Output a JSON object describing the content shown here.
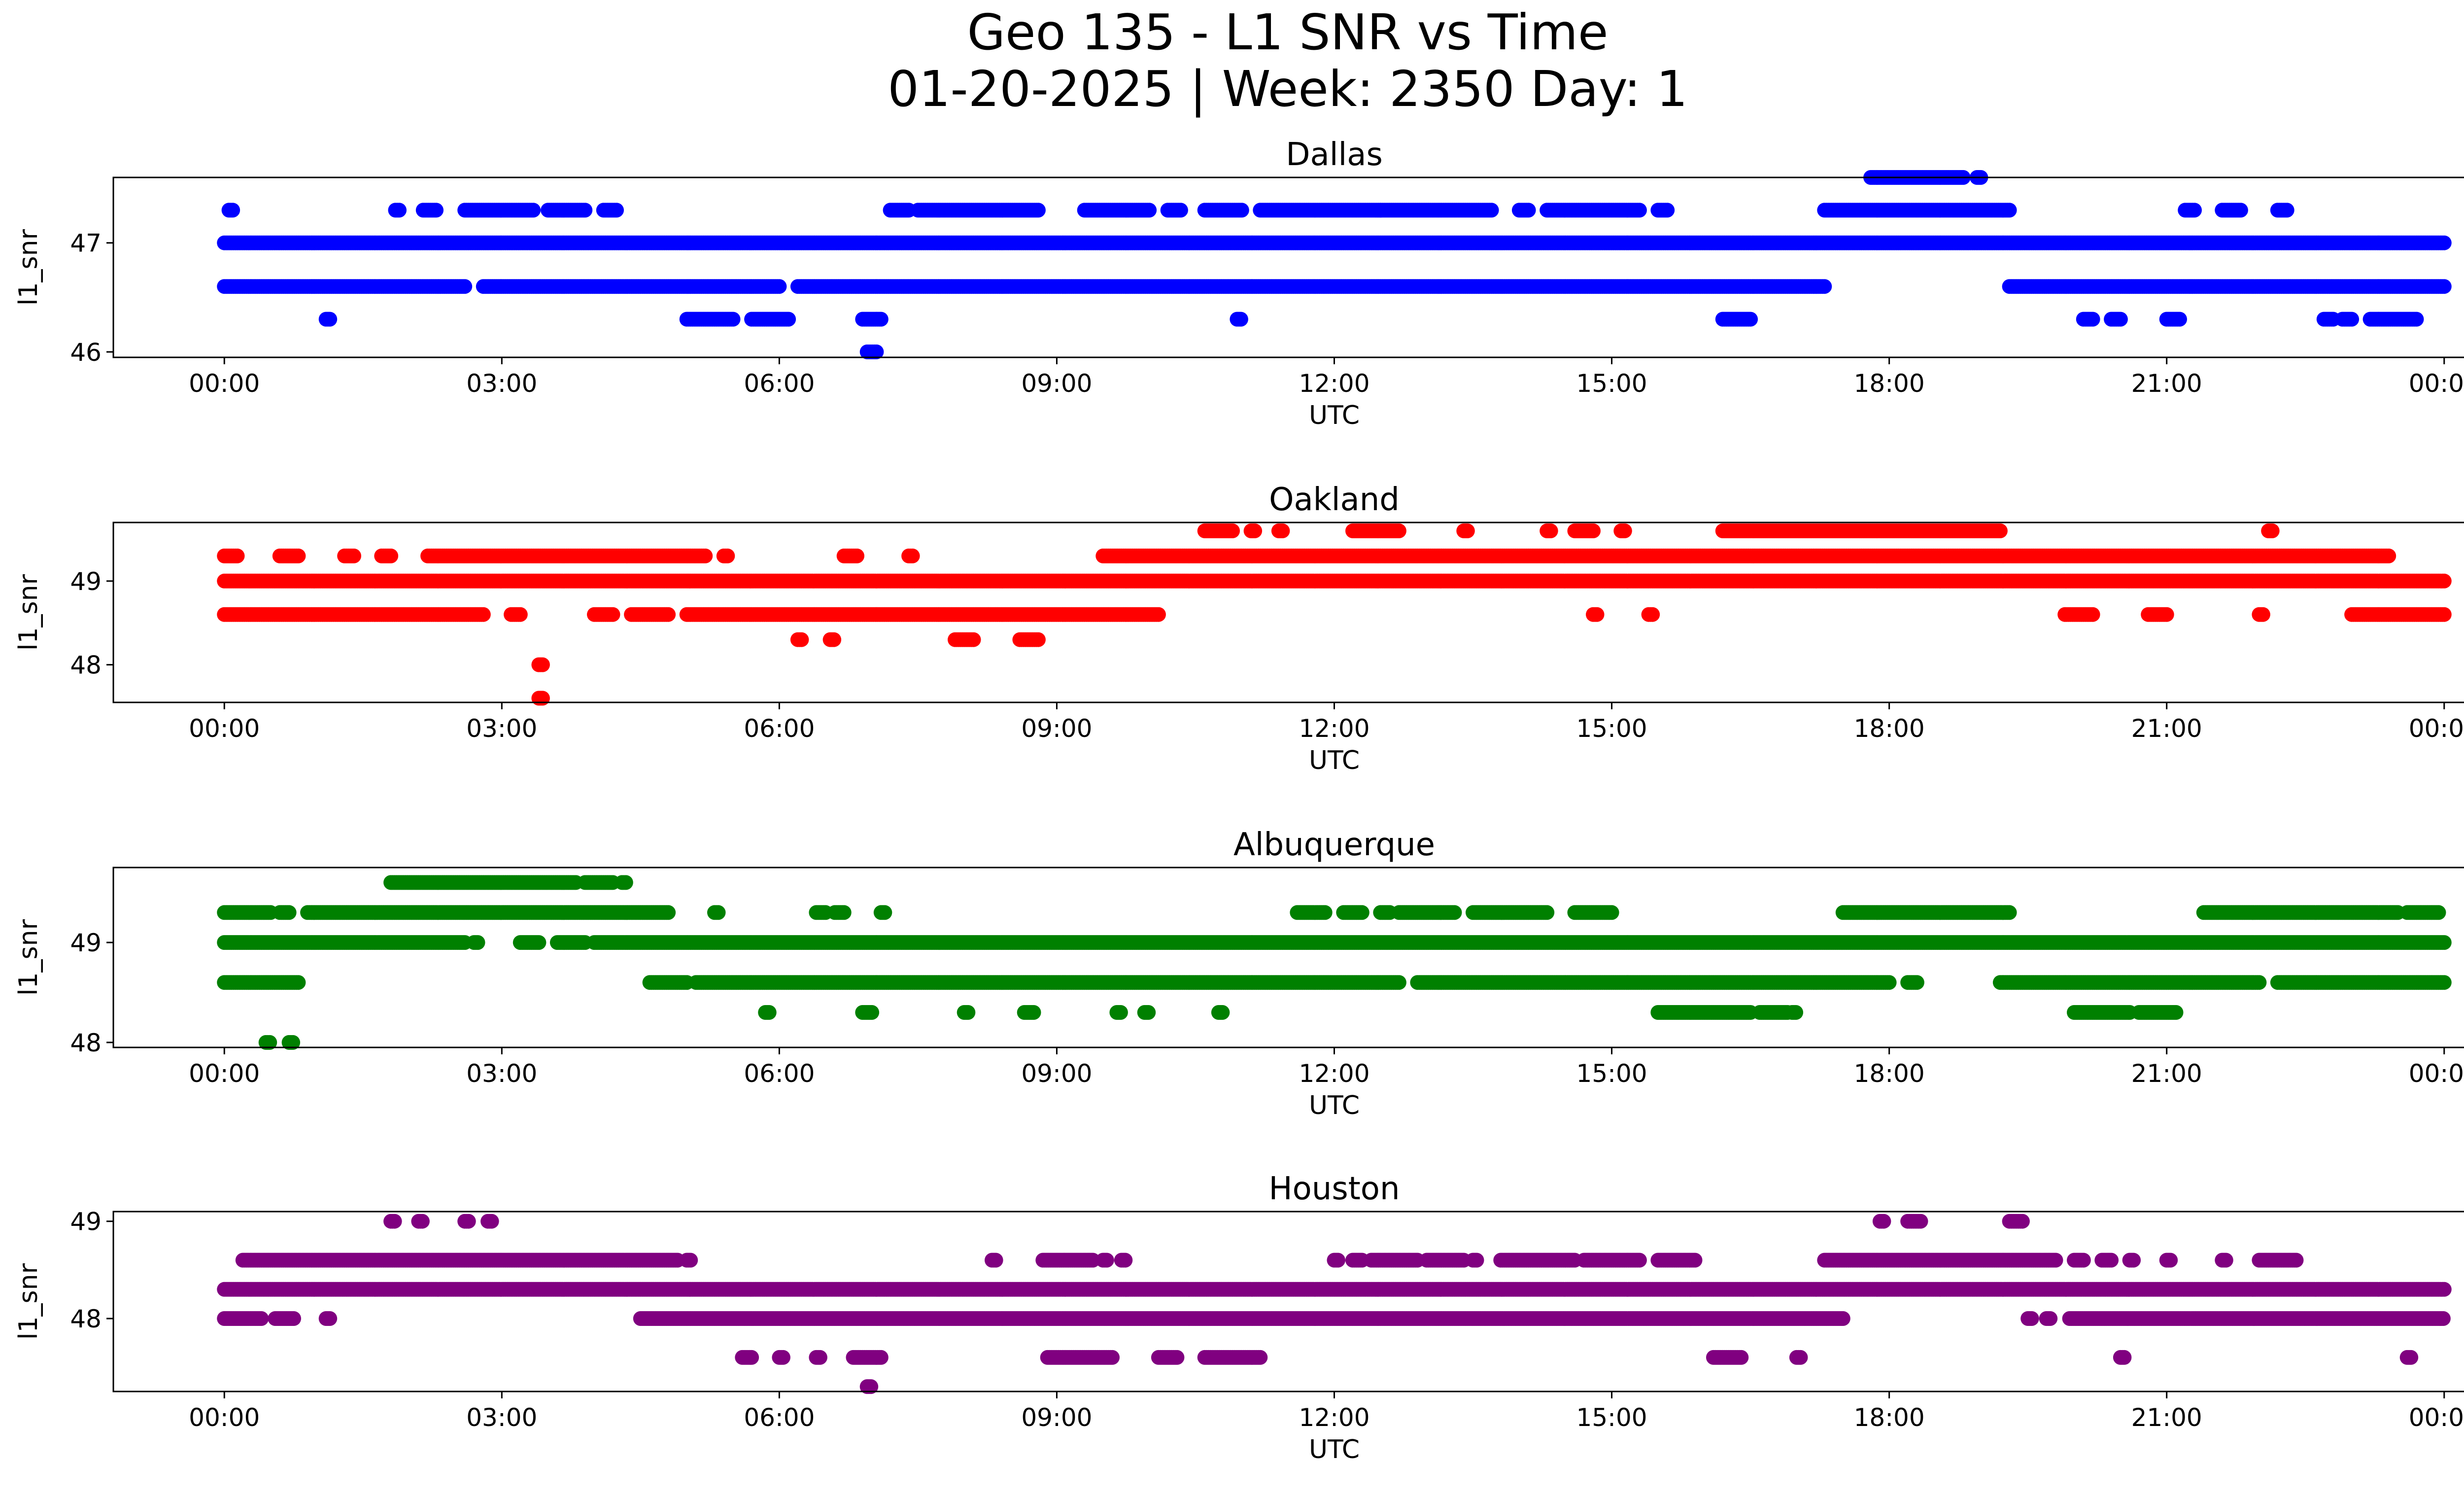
{
  "figure": {
    "title_line1": "Geo 135 - L1 SNR vs Time",
    "title_line2": "01-20-2025 | Week: 2350 Day: 1"
  },
  "chart_data": [
    {
      "type": "scatter",
      "title": "Dallas",
      "xlabel": "UTC",
      "ylabel": "l1_snr",
      "color": "#0000ff",
      "xlim_hours": [
        -1.2,
        25.2
      ],
      "ylim": [
        45.95,
        47.6
      ],
      "yticks": [
        46,
        47
      ],
      "xticks": [
        "00:00",
        "03:00",
        "06:00",
        "09:00",
        "12:00",
        "15:00",
        "18:00",
        "21:00",
        "00:00"
      ],
      "bands": [
        {
          "y": 47.0,
          "segments": [
            [
              0,
              24
            ]
          ]
        },
        {
          "y": 46.6,
          "segments": [
            [
              0,
              2.6
            ],
            [
              2.8,
              6.0
            ],
            [
              6.2,
              17.3
            ],
            [
              19.3,
              24
            ]
          ]
        },
        {
          "y": 47.3,
          "segments": [
            [
              0.05,
              0.1
            ],
            [
              1.85,
              1.9
            ],
            [
              2.15,
              2.3
            ],
            [
              2.6,
              3.35
            ],
            [
              3.5,
              3.9
            ],
            [
              4.1,
              4.25
            ],
            [
              7.2,
              7.4
            ],
            [
              7.5,
              8.8
            ],
            [
              9.3,
              10.0
            ],
            [
              10.2,
              10.35
            ],
            [
              10.6,
              11.0
            ],
            [
              11.2,
              12.5
            ],
            [
              12.5,
              13.7
            ],
            [
              14.0,
              14.1
            ],
            [
              14.3,
              15.3
            ],
            [
              15.5,
              15.6
            ],
            [
              17.3,
              19.3
            ],
            [
              21.2,
              21.3
            ],
            [
              21.6,
              21.8
            ],
            [
              22.2,
              22.3
            ]
          ]
        },
        {
          "y": 47.6,
          "segments": [
            [
              17.8,
              18.8
            ],
            [
              18.95,
              19.0
            ]
          ]
        },
        {
          "y": 46.3,
          "segments": [
            [
              1.1,
              1.15
            ],
            [
              5.0,
              5.5
            ],
            [
              5.7,
              6.1
            ],
            [
              6.9,
              7.1
            ],
            [
              10.95,
              11.0
            ],
            [
              16.2,
              16.5
            ],
            [
              20.1,
              20.2
            ],
            [
              20.4,
              20.5
            ],
            [
              21.0,
              21.15
            ],
            [
              22.7,
              22.8
            ],
            [
              22.9,
              23.0
            ],
            [
              23.2,
              23.7
            ]
          ]
        },
        {
          "y": 46.0,
          "segments": [
            [
              6.95,
              7.05
            ]
          ]
        }
      ]
    },
    {
      "type": "scatter",
      "title": "Oakland",
      "xlabel": "UTC",
      "ylabel": "l1_snr",
      "color": "#ff0000",
      "xlim_hours": [
        -1.2,
        25.2
      ],
      "ylim": [
        47.55,
        49.7
      ],
      "yticks": [
        48,
        49
      ],
      "xticks": [
        "00:00",
        "03:00",
        "06:00",
        "09:00",
        "12:00",
        "15:00",
        "18:00",
        "21:00",
        "00:00"
      ],
      "bands": [
        {
          "y": 49.0,
          "segments": [
            [
              0,
              24
            ]
          ]
        },
        {
          "y": 48.6,
          "segments": [
            [
              0,
              2.8
            ],
            [
              3.1,
              3.2
            ],
            [
              4.0,
              4.2
            ],
            [
              4.4,
              4.8
            ],
            [
              5.0,
              10.1
            ],
            [
              14.8,
              14.85
            ],
            [
              15.4,
              15.45
            ],
            [
              19.9,
              20.2
            ],
            [
              20.8,
              21.0
            ],
            [
              22.0,
              22.05
            ],
            [
              23.0,
              24
            ]
          ]
        },
        {
          "y": 49.3,
          "segments": [
            [
              0,
              0.15
            ],
            [
              0.6,
              0.8
            ],
            [
              1.3,
              1.4
            ],
            [
              1.7,
              1.8
            ],
            [
              2.2,
              5.2
            ],
            [
              5.4,
              5.45
            ],
            [
              6.7,
              6.85
            ],
            [
              7.4,
              7.45
            ],
            [
              9.5,
              23.4
            ]
          ]
        },
        {
          "y": 49.6,
          "segments": [
            [
              10.6,
              10.9
            ],
            [
              11.1,
              11.15
            ],
            [
              11.4,
              11.45
            ],
            [
              12.2,
              12.7
            ],
            [
              13.4,
              13.45
            ],
            [
              14.3,
              14.35
            ],
            [
              14.6,
              14.8
            ],
            [
              15.1,
              15.15
            ],
            [
              16.2,
              19.2
            ],
            [
              22.1,
              22.15
            ]
          ]
        },
        {
          "y": 48.3,
          "segments": [
            [
              6.2,
              6.25
            ],
            [
              6.55,
              6.6
            ],
            [
              7.9,
              8.1
            ],
            [
              8.6,
              8.8
            ]
          ]
        },
        {
          "y": 48.0,
          "segments": [
            [
              3.4,
              3.45
            ]
          ]
        },
        {
          "y": 47.6,
          "segments": [
            [
              3.4,
              3.45
            ]
          ]
        }
      ]
    },
    {
      "type": "scatter",
      "title": "Albuquerque",
      "xlabel": "UTC",
      "ylabel": "l1_snr",
      "color": "#008000",
      "xlim_hours": [
        -1.2,
        25.2
      ],
      "ylim": [
        47.95,
        49.75
      ],
      "yticks": [
        48,
        49
      ],
      "xticks": [
        "00:00",
        "03:00",
        "06:00",
        "09:00",
        "12:00",
        "15:00",
        "18:00",
        "21:00",
        "00:00"
      ],
      "bands": [
        {
          "y": 49.0,
          "segments": [
            [
              0,
              2.6
            ],
            [
              2.7,
              2.75
            ],
            [
              3.2,
              3.4
            ],
            [
              3.6,
              3.9
            ],
            [
              4.0,
              24
            ]
          ]
        },
        {
          "y": 48.6,
          "segments": [
            [
              0,
              0.8
            ],
            [
              4.6,
              5.0
            ],
            [
              5.1,
              12.7
            ],
            [
              12.9,
              18.0
            ],
            [
              18.2,
              18.3
            ],
            [
              19.2,
              22.0
            ],
            [
              22.2,
              24
            ]
          ]
        },
        {
          "y": 49.3,
          "segments": [
            [
              0,
              0.5
            ],
            [
              0.6,
              0.7
            ],
            [
              0.9,
              4.8
            ],
            [
              5.3,
              5.35
            ],
            [
              6.4,
              6.5
            ],
            [
              6.6,
              6.7
            ],
            [
              7.1,
              7.15
            ],
            [
              11.6,
              11.9
            ],
            [
              12.1,
              12.3
            ],
            [
              12.5,
              12.6
            ],
            [
              12.7,
              13.3
            ],
            [
              13.5,
              14.3
            ],
            [
              14.6,
              15.0
            ],
            [
              17.5,
              19.3
            ],
            [
              21.4,
              23.5
            ],
            [
              23.6,
              23.95
            ]
          ]
        },
        {
          "y": 49.6,
          "segments": [
            [
              1.8,
              3.8
            ],
            [
              3.9,
              4.2
            ],
            [
              4.3,
              4.35
            ]
          ]
        },
        {
          "y": 48.3,
          "segments": [
            [
              5.85,
              5.9
            ],
            [
              6.9,
              7.0
            ],
            [
              8.0,
              8.05
            ],
            [
              8.65,
              8.75
            ],
            [
              9.65,
              9.7
            ],
            [
              9.95,
              10.0
            ],
            [
              10.75,
              10.8
            ],
            [
              15.5,
              16.5
            ],
            [
              16.6,
              16.9
            ],
            [
              16.95,
              17.0
            ],
            [
              20.0,
              20.6
            ],
            [
              20.7,
              21.1
            ]
          ]
        },
        {
          "y": 48.0,
          "segments": [
            [
              0.45,
              0.5
            ],
            [
              0.7,
              0.75
            ]
          ]
        }
      ]
    },
    {
      "type": "scatter",
      "title": "Houston",
      "xlabel": "UTC",
      "ylabel": "l1_snr",
      "color": "#800080",
      "xlim_hours": [
        -1.2,
        25.2
      ],
      "ylim": [
        47.25,
        49.1
      ],
      "yticks": [
        48,
        49
      ],
      "xticks": [
        "00:00",
        "03:00",
        "06:00",
        "09:00",
        "12:00",
        "15:00",
        "18:00",
        "21:00",
        "00:00"
      ],
      "bands": [
        {
          "y": 48.3,
          "segments": [
            [
              0,
              24
            ]
          ]
        },
        {
          "y": 48.0,
          "segments": [
            [
              0,
              0.4
            ],
            [
              0.55,
              0.75
            ],
            [
              1.1,
              1.15
            ],
            [
              4.5,
              17.5
            ],
            [
              19.5,
              19.55
            ],
            [
              19.7,
              19.75
            ],
            [
              19.95,
              24
            ]
          ]
        },
        {
          "y": 48.6,
          "segments": [
            [
              0.2,
              4.9
            ],
            [
              5.0,
              5.05
            ],
            [
              8.3,
              8.35
            ],
            [
              8.85,
              9.4
            ],
            [
              9.5,
              9.55
            ],
            [
              9.7,
              9.75
            ],
            [
              12.0,
              12.05
            ],
            [
              12.2,
              12.3
            ],
            [
              12.4,
              12.9
            ],
            [
              13.0,
              13.4
            ],
            [
              13.5,
              13.55
            ],
            [
              13.8,
              14.6
            ],
            [
              14.7,
              15.3
            ],
            [
              15.5,
              15.9
            ],
            [
              17.3,
              19.8
            ],
            [
              20.0,
              20.1
            ],
            [
              20.3,
              20.4
            ],
            [
              20.6,
              20.65
            ],
            [
              21.0,
              21.05
            ],
            [
              21.6,
              21.65
            ],
            [
              22.0,
              22.4
            ]
          ]
        },
        {
          "y": 49.0,
          "segments": [
            [
              1.8,
              1.85
            ],
            [
              2.1,
              2.15
            ],
            [
              2.6,
              2.65
            ],
            [
              2.85,
              2.9
            ],
            [
              17.9,
              17.95
            ],
            [
              18.2,
              18.35
            ],
            [
              19.3,
              19.45
            ]
          ]
        },
        {
          "y": 47.6,
          "segments": [
            [
              5.6,
              5.7
            ],
            [
              6.0,
              6.05
            ],
            [
              6.4,
              6.45
            ],
            [
              6.8,
              7.1
            ],
            [
              8.9,
              9.6
            ],
            [
              10.1,
              10.3
            ],
            [
              10.6,
              11.2
            ],
            [
              16.1,
              16.4
            ],
            [
              17.0,
              17.05
            ],
            [
              20.5,
              20.55
            ],
            [
              23.6,
              23.65
            ]
          ]
        },
        {
          "y": 47.3,
          "segments": [
            [
              6.95,
              7.0
            ]
          ]
        }
      ]
    }
  ]
}
